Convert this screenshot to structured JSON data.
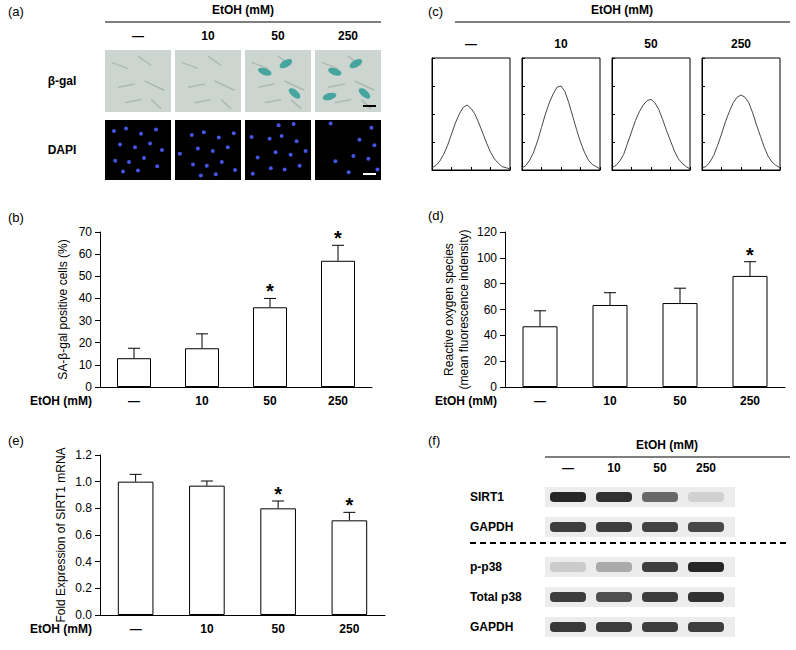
{
  "panels": {
    "a": {
      "label": "(a)",
      "header": "EtOH (mM)",
      "columns": [
        "—",
        "10",
        "50",
        "250"
      ],
      "rows": [
        "β-gal",
        "DAPI"
      ]
    },
    "c": {
      "label": "(c)",
      "header": "EtOH (mM)"
    },
    "f": {
      "label": "(f)",
      "header": "EtOH (mM)",
      "columns": [
        "—",
        "10",
        "50",
        "250"
      ],
      "blot_groups": [
        [
          {
            "label": "SIRT1",
            "band_intensity": [
              0.9,
              0.85,
              0.6,
              0.12
            ]
          },
          {
            "label": "GAPDH",
            "band_intensity": [
              0.8,
              0.8,
              0.78,
              0.75
            ]
          }
        ],
        [
          {
            "label": "p-p38",
            "band_intensity": [
              0.15,
              0.3,
              0.8,
              0.9
            ]
          },
          {
            "label": "Total p38",
            "band_intensity": [
              0.8,
              0.72,
              0.8,
              0.85
            ]
          },
          {
            "label": "GAPDH",
            "band_intensity": [
              0.82,
              0.8,
              0.8,
              0.8
            ]
          }
        ]
      ]
    }
  },
  "chart_data": [
    {
      "type": "bar",
      "title": "(b)",
      "xlabel": "EtOH (mM)",
      "ylabel": "SA-β-gal positive cells (%)",
      "categories": [
        "—",
        "10",
        "50",
        "250"
      ],
      "values": [
        13,
        17.5,
        36,
        57
      ],
      "errors": [
        4.5,
        6.5,
        4,
        7
      ],
      "annotations": [
        {
          "category": "50",
          "text": "*"
        },
        {
          "category": "250",
          "text": "*"
        }
      ],
      "color": "#ffffff",
      "ylim": [
        0,
        70
      ],
      "yticks": [
        0,
        10,
        20,
        30,
        40,
        50,
        60,
        70
      ],
      "grid": false
    },
    {
      "type": "bar",
      "title": "(d)",
      "xlabel": "EtOH (mM)",
      "ylabel": "Reactive oxygen species\n(mean fluorescence indensity)",
      "categories": [
        "—",
        "10",
        "50",
        "250"
      ],
      "values": [
        47,
        63.5,
        65,
        86
      ],
      "errors": [
        12,
        9.5,
        11.5,
        11
      ],
      "annotations": [
        {
          "category": "250",
          "text": "*"
        }
      ],
      "color": "#ffffff",
      "ylim": [
        0,
        120
      ],
      "yticks": [
        0,
        20,
        40,
        60,
        80,
        100,
        120
      ],
      "grid": false
    },
    {
      "type": "bar",
      "title": "(e)",
      "xlabel": "EtOH (mM)",
      "ylabel": "Fold Expression of SIRT1 mRNA",
      "categories": [
        "—",
        "10",
        "50",
        "250"
      ],
      "values": [
        1.0,
        0.97,
        0.8,
        0.71
      ],
      "errors": [
        0.055,
        0.035,
        0.055,
        0.06
      ],
      "annotations": [
        {
          "category": "50",
          "text": "*"
        },
        {
          "category": "250",
          "text": "*"
        }
      ],
      "color": "#ffffff",
      "ylim": [
        0,
        1.2
      ],
      "yticks": [
        {
          "value": 0,
          "label": "0.0"
        },
        0.2,
        0.4,
        0.6,
        0.8,
        {
          "value": 1,
          "label": "1.0"
        },
        1.2
      ],
      "grid": false
    },
    {
      "type": "line",
      "title": "—",
      "color": "#333333",
      "tick_labels": false,
      "grid": false,
      "x": [
        0,
        1,
        2,
        3,
        4,
        5,
        6,
        7,
        8,
        9,
        10,
        11,
        12,
        13,
        14,
        15,
        16,
        17,
        18,
        19,
        20
      ],
      "values": [
        2,
        4,
        8,
        14,
        22,
        32,
        42,
        50,
        56,
        58,
        55,
        50,
        42,
        33,
        24,
        16,
        10,
        6,
        3,
        2,
        1
      ],
      "xlim": [
        0,
        20
      ],
      "xticks": [
        0,
        5,
        10,
        15,
        20
      ],
      "ylim": [
        0,
        100
      ],
      "yticks": [
        0,
        25,
        50,
        75,
        100
      ]
    },
    {
      "type": "line",
      "title": "10",
      "color": "#333333",
      "tick_labels": false,
      "grid": false,
      "x": [
        0,
        1,
        2,
        3,
        4,
        5,
        6,
        7,
        8,
        9,
        10,
        11,
        12,
        13,
        14,
        15,
        16,
        17,
        18,
        19,
        20
      ],
      "values": [
        2,
        4,
        9,
        16,
        26,
        38,
        50,
        60,
        68,
        74,
        75,
        70,
        60,
        48,
        36,
        25,
        16,
        9,
        5,
        3,
        1
      ],
      "xlim": [
        0,
        20
      ],
      "xticks": [
        0,
        5,
        10,
        15,
        20
      ],
      "ylim": [
        0,
        100
      ],
      "yticks": [
        0,
        25,
        50,
        75,
        100
      ]
    },
    {
      "type": "line",
      "title": "50",
      "color": "#333333",
      "tick_labels": false,
      "grid": false,
      "x": [
        0,
        1,
        2,
        3,
        4,
        5,
        6,
        7,
        8,
        9,
        10,
        11,
        12,
        13,
        14,
        15,
        16,
        17,
        18,
        19,
        20
      ],
      "values": [
        2,
        4,
        8,
        14,
        24,
        34,
        44,
        52,
        58,
        62,
        63,
        60,
        54,
        45,
        35,
        26,
        17,
        10,
        6,
        3,
        1
      ],
      "xlim": [
        0,
        20
      ],
      "xticks": [
        0,
        5,
        10,
        15,
        20
      ],
      "ylim": [
        0,
        100
      ],
      "yticks": [
        0,
        25,
        50,
        75,
        100
      ]
    },
    {
      "type": "line",
      "title": "250",
      "color": "#333333",
      "tick_labels": false,
      "grid": false,
      "x": [
        0,
        1,
        2,
        3,
        4,
        5,
        6,
        7,
        8,
        9,
        10,
        11,
        12,
        13,
        14,
        15,
        16,
        17,
        18,
        19,
        20
      ],
      "values": [
        2,
        3,
        7,
        13,
        22,
        32,
        43,
        52,
        60,
        65,
        67,
        65,
        60,
        51,
        40,
        30,
        20,
        12,
        7,
        4,
        2
      ],
      "xlim": [
        0,
        20
      ],
      "xticks": [
        0,
        5,
        10,
        15,
        20
      ],
      "ylim": [
        0,
        100
      ],
      "yticks": [
        0,
        25,
        50,
        75,
        100
      ]
    }
  ]
}
